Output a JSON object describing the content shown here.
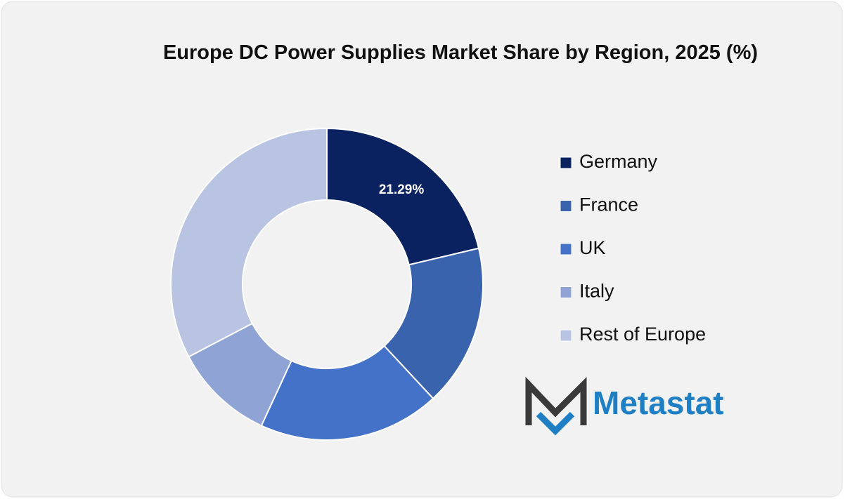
{
  "chart_data": {
    "type": "donut",
    "title": "Europe DC Power Supplies Market Share by Region, 2025 (%)",
    "categories": [
      "Germany",
      "France",
      "UK",
      "Italy",
      "Rest of Europe"
    ],
    "values": [
      21.29,
      16.8,
      18.8,
      10.4,
      32.7
    ],
    "value_labels": [
      "21.29%",
      null,
      null,
      null,
      null
    ],
    "colors": [
      "#0b2260",
      "#3a63ad",
      "#4472c8",
      "#8fa3d4",
      "#b9c3e2"
    ],
    "legend": "right"
  },
  "brand": {
    "name": "Metastat"
  }
}
